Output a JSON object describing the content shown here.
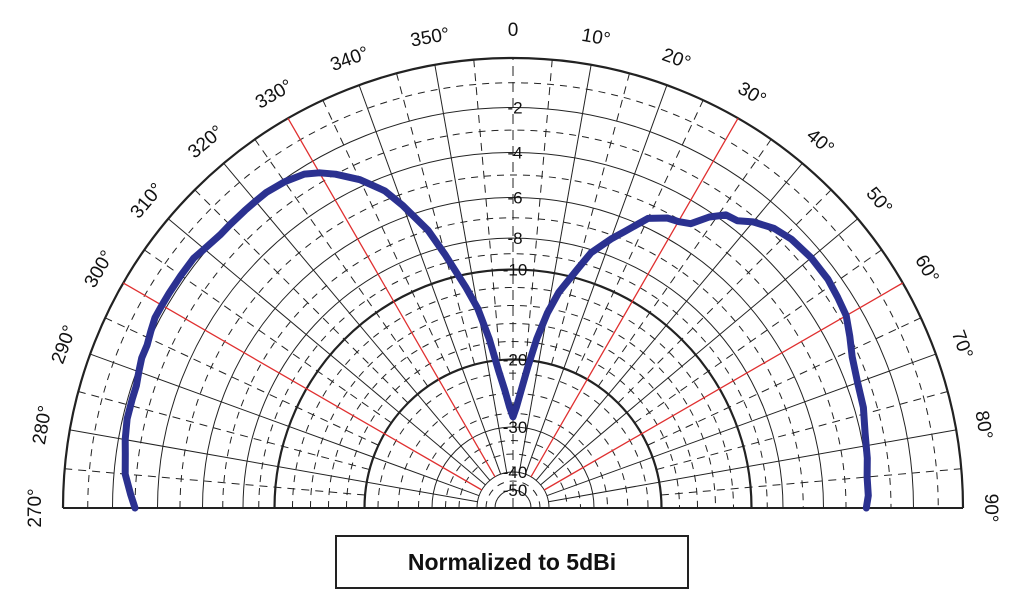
{
  "caption": "Normalized to 5dBi",
  "chart_data": {
    "type": "polar",
    "angle_unit": "degrees",
    "angle_range": [
      -90,
      90
    ],
    "angle_labels": [
      {
        "angle": -90,
        "text": "270°"
      },
      {
        "angle": -80,
        "text": "280°"
      },
      {
        "angle": -70,
        "text": "290°"
      },
      {
        "angle": -60,
        "text": "300°"
      },
      {
        "angle": -50,
        "text": "310°"
      },
      {
        "angle": -40,
        "text": "320°"
      },
      {
        "angle": -30,
        "text": "330°"
      },
      {
        "angle": -20,
        "text": "340°"
      },
      {
        "angle": -10,
        "text": "350°"
      },
      {
        "angle": 0,
        "text": "0"
      },
      {
        "angle": 10,
        "text": "10°"
      },
      {
        "angle": 20,
        "text": "20°"
      },
      {
        "angle": 30,
        "text": "30°"
      },
      {
        "angle": 40,
        "text": "40°"
      },
      {
        "angle": 50,
        "text": "50°"
      },
      {
        "angle": 60,
        "text": "60°"
      },
      {
        "angle": 70,
        "text": "70°"
      },
      {
        "angle": 80,
        "text": "80°"
      },
      {
        "angle": 90,
        "text": "90°"
      }
    ],
    "radial_unit": "dB",
    "radial_range": [
      -50,
      0
    ],
    "radial_labels": [
      {
        "value": -2,
        "text": "-2"
      },
      {
        "value": -4,
        "text": "-4"
      },
      {
        "value": -6,
        "text": "-6"
      },
      {
        "value": -8,
        "text": "-8"
      },
      {
        "value": -10,
        "text": "-10"
      },
      {
        "value": -20,
        "text": "-20"
      },
      {
        "value": -30,
        "text": "-30"
      },
      {
        "value": -40,
        "text": "-40"
      },
      {
        "value": -50,
        "text": "-50"
      }
    ],
    "grid": true,
    "highlight_angles": [
      -60,
      -30,
      30,
      60
    ],
    "colors": {
      "pattern": "#2b3190",
      "highlight": "#e03030",
      "grid": "#222222"
    },
    "series": [
      {
        "points": [
          [
            -90,
            -3.0
          ],
          [
            -88,
            -2.8
          ],
          [
            -85,
            -2.5
          ],
          [
            -82,
            -2.4
          ],
          [
            -80,
            -2.3
          ],
          [
            -77,
            -2.2
          ],
          [
            -74,
            -2.2
          ],
          [
            -72,
            -2.2
          ],
          [
            -70,
            -2.1
          ],
          [
            -68,
            -2.0
          ],
          [
            -66,
            -2.0
          ],
          [
            -64,
            -1.9
          ],
          [
            -62,
            -1.8
          ],
          [
            -60,
            -1.8
          ],
          [
            -58,
            -1.8
          ],
          [
            -55,
            -1.8
          ],
          [
            -52,
            -1.8
          ],
          [
            -50,
            -1.9
          ],
          [
            -47,
            -2.0
          ],
          [
            -45,
            -2.0
          ],
          [
            -42,
            -2.0
          ],
          [
            -40,
            -2.0
          ],
          [
            -38,
            -2.0
          ],
          [
            -35,
            -2.1
          ],
          [
            -32,
            -2.3
          ],
          [
            -30,
            -2.6
          ],
          [
            -28,
            -3.0
          ],
          [
            -25,
            -3.7
          ],
          [
            -22,
            -4.6
          ],
          [
            -20,
            -5.5
          ],
          [
            -17,
            -7.0
          ],
          [
            -15,
            -8.5
          ],
          [
            -12,
            -11.5
          ],
          [
            -10,
            -14.0
          ],
          [
            -8,
            -17.5
          ],
          [
            -6,
            -21.5
          ],
          [
            -4,
            -24.5
          ],
          [
            -2,
            -27.0
          ],
          [
            0,
            -28.5
          ],
          [
            2,
            -27.0
          ],
          [
            4,
            -24.5
          ],
          [
            6,
            -21.0
          ],
          [
            8,
            -17.5
          ],
          [
            10,
            -14.5
          ],
          [
            12,
            -12.0
          ],
          [
            15,
            -9.5
          ],
          [
            17,
            -8.2
          ],
          [
            20,
            -7.2
          ],
          [
            22,
            -6.6
          ],
          [
            25,
            -5.6
          ],
          [
            28,
            -5.2
          ],
          [
            30,
            -5.1
          ],
          [
            32,
            -4.9
          ],
          [
            34,
            -4.2
          ],
          [
            36,
            -3.7
          ],
          [
            38,
            -3.6
          ],
          [
            40,
            -3.2
          ],
          [
            43,
            -2.8
          ],
          [
            46,
            -2.6
          ],
          [
            50,
            -2.5
          ],
          [
            54,
            -2.5
          ],
          [
            57,
            -2.6
          ],
          [
            60,
            -2.7
          ],
          [
            63,
            -3.0
          ],
          [
            66,
            -3.3
          ],
          [
            70,
            -3.5
          ],
          [
            74,
            -3.6
          ],
          [
            78,
            -3.8
          ],
          [
            82,
            -3.9
          ],
          [
            85,
            -4.0
          ],
          [
            88,
            -4.0
          ],
          [
            90,
            -4.1
          ]
        ]
      }
    ]
  }
}
